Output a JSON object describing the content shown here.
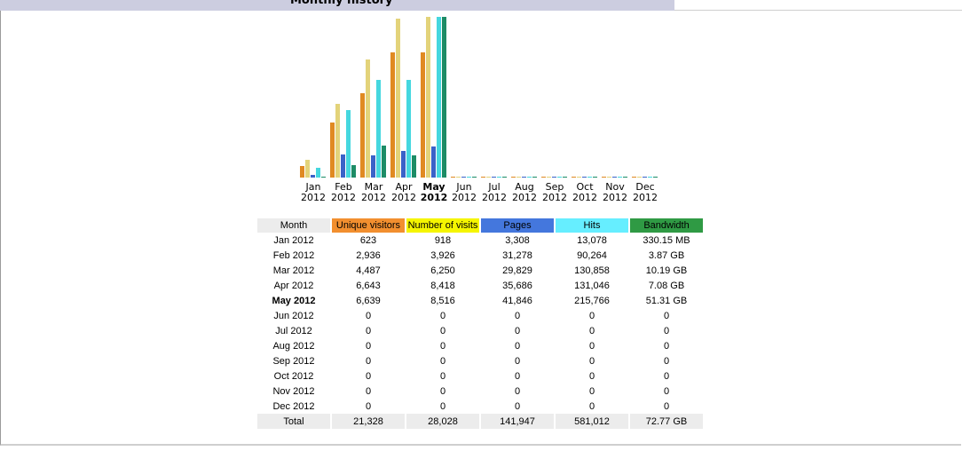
{
  "section": {
    "title": "Monthly history"
  },
  "chart_data": {
    "type": "bar",
    "categories": [
      "Jan 2012",
      "Feb 2012",
      "Mar 2012",
      "Apr 2012",
      "May 2012",
      "Jun 2012",
      "Jul 2012",
      "Aug 2012",
      "Sep 2012",
      "Oct 2012",
      "Nov 2012",
      "Dec 2012"
    ],
    "months": [
      "Jan",
      "Feb",
      "Mar",
      "Apr",
      "May",
      "Jun",
      "Jul",
      "Aug",
      "Sep",
      "Oct",
      "Nov",
      "Dec"
    ],
    "year": "2012",
    "current_month_index": 4,
    "series": [
      {
        "name": "Unique visitors",
        "color": "#e08a22",
        "values": [
          623,
          2936,
          4487,
          6643,
          6639,
          0,
          0,
          0,
          0,
          0,
          0,
          0
        ]
      },
      {
        "name": "Number of visits",
        "color": "#e3d37a",
        "values": [
          918,
          3926,
          6250,
          8418,
          8516,
          0,
          0,
          0,
          0,
          0,
          0,
          0
        ]
      },
      {
        "name": "Pages",
        "color": "#3a62c8",
        "values": [
          3308,
          31278,
          29829,
          35686,
          41846,
          0,
          0,
          0,
          0,
          0,
          0,
          0
        ]
      },
      {
        "name": "Hits",
        "color": "#45d7df",
        "values": [
          13078,
          90264,
          130858,
          131046,
          215766,
          0,
          0,
          0,
          0,
          0,
          0,
          0
        ]
      },
      {
        "name": "Bandwidth",
        "color": "#1d8c66",
        "values_gb": [
          0.33015,
          3.87,
          10.19,
          7.08,
          51.31,
          0,
          0,
          0,
          0,
          0,
          0,
          0
        ]
      }
    ],
    "scale_groups": [
      [
        0,
        1
      ],
      [
        2,
        3
      ],
      [
        4
      ]
    ]
  },
  "table": {
    "headers": [
      "Month",
      "Unique visitors",
      "Number of visits",
      "Pages",
      "Hits",
      "Bandwidth"
    ],
    "rows": [
      [
        "Jan 2012",
        "623",
        "918",
        "3,308",
        "13,078",
        "330.15 MB"
      ],
      [
        "Feb 2012",
        "2,936",
        "3,926",
        "31,278",
        "90,264",
        "3.87 GB"
      ],
      [
        "Mar 2012",
        "4,487",
        "6,250",
        "29,829",
        "130,858",
        "10.19 GB"
      ],
      [
        "Apr 2012",
        "6,643",
        "8,418",
        "35,686",
        "131,046",
        "7.08 GB"
      ],
      [
        "May 2012",
        "6,639",
        "8,516",
        "41,846",
        "215,766",
        "51.31 GB"
      ],
      [
        "Jun 2012",
        "0",
        "0",
        "0",
        "0",
        "0"
      ],
      [
        "Jul 2012",
        "0",
        "0",
        "0",
        "0",
        "0"
      ],
      [
        "Aug 2012",
        "0",
        "0",
        "0",
        "0",
        "0"
      ],
      [
        "Sep 2012",
        "0",
        "0",
        "0",
        "0",
        "0"
      ],
      [
        "Oct 2012",
        "0",
        "0",
        "0",
        "0",
        "0"
      ],
      [
        "Nov 2012",
        "0",
        "0",
        "0",
        "0",
        "0"
      ],
      [
        "Dec 2012",
        "0",
        "0",
        "0",
        "0",
        "0"
      ]
    ],
    "total": [
      "Total",
      "21,328",
      "28,028",
      "141,947",
      "581,012",
      "72.77 GB"
    ]
  }
}
